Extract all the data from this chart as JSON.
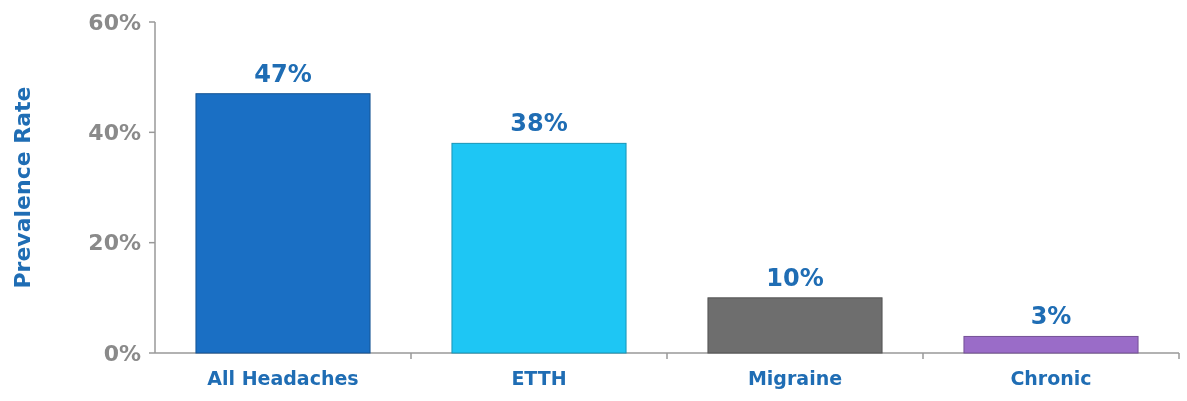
{
  "chart_data": {
    "type": "bar",
    "ylabel": "Prevalence Rate",
    "categories": [
      "All Headaches",
      "ETTH",
      "Migraine",
      "Chronic"
    ],
    "values": [
      47,
      38,
      10,
      3
    ],
    "colors": [
      "#1a6fc4",
      "#1ec6f4",
      "#6e6e6e",
      "#9a6cc8"
    ],
    "value_labels": [
      "47%",
      "38%",
      "10%",
      "3%"
    ],
    "ylim": [
      0,
      60
    ],
    "yticks": [
      {
        "value": 0,
        "label": "0%"
      },
      {
        "value": 20,
        "label": "20%"
      },
      {
        "value": 40,
        "label": "40%"
      },
      {
        "value": 60,
        "label": "60%"
      }
    ],
    "grid": false
  }
}
